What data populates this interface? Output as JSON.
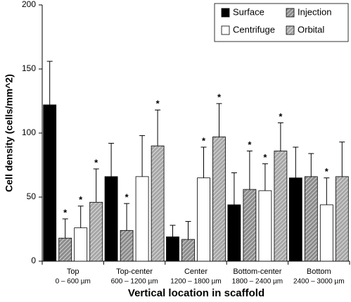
{
  "chart_data": {
    "type": "bar",
    "y_label": "Cell density (cells/mm^2)",
    "x_label": "Vertical location in scaffold",
    "categories": [
      "Top",
      "Top-center",
      "Center",
      "Bottom-center",
      "Bottom"
    ],
    "category_ranges": [
      "0 – 600 µm",
      "600 – 1200 µm",
      "1200 – 1800 µm",
      "1800 – 2400 µm",
      "2400 – 3000 µm"
    ],
    "annotation": "*",
    "series": [
      {
        "name": "Surface",
        "color": "#000000",
        "hatched": false,
        "values": [
          122,
          66,
          19,
          44,
          65
        ],
        "errors": [
          34,
          26,
          9,
          25,
          24
        ],
        "significant": [
          false,
          false,
          false,
          false,
          false
        ]
      },
      {
        "name": "Injection",
        "color": "#8c8c8c",
        "hatched": true,
        "values": [
          18,
          24,
          17,
          56,
          66
        ],
        "errors": [
          15,
          21,
          14,
          30,
          18
        ],
        "significant": [
          true,
          true,
          false,
          true,
          false
        ]
      },
      {
        "name": "Centrifuge",
        "color": "#ffffff",
        "hatched": false,
        "values": [
          26,
          66,
          65,
          55,
          44
        ],
        "errors": [
          17,
          32,
          24,
          21,
          21
        ],
        "significant": [
          true,
          false,
          true,
          true,
          true
        ]
      },
      {
        "name": "Orbital",
        "color": "#a6a6a6",
        "hatched": true,
        "values": [
          46,
          90,
          97,
          86,
          66
        ],
        "errors": [
          26,
          28,
          26,
          22,
          27
        ],
        "significant": [
          true,
          true,
          true,
          true,
          false
        ]
      }
    ],
    "ylim": [
      0,
      200
    ],
    "yticks": [
      0,
      50,
      100,
      150,
      200
    ],
    "grid": false,
    "legend": "upper right"
  }
}
